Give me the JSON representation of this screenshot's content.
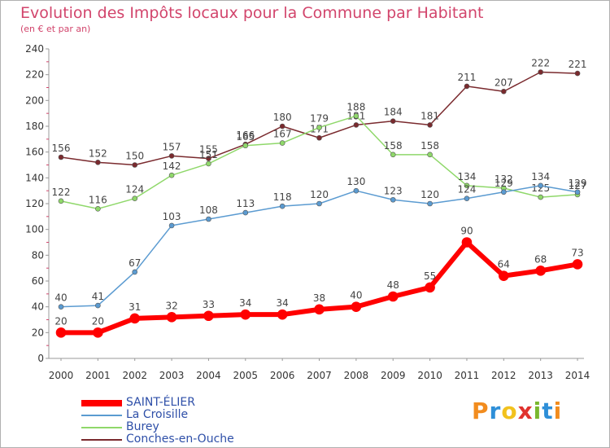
{
  "title": "Evolution des Impôts locaux pour la Commune par Habitant",
  "subtitle": "(en € et par an)",
  "logo": {
    "letters": [
      "P",
      "r",
      "o",
      "x",
      "i",
      "t",
      "i"
    ],
    "colors": [
      "#f28c1e",
      "#2e8fd8",
      "#f2c21e",
      "#e0322e",
      "#7ab82e",
      "#2e8fd8",
      "#f28c1e"
    ]
  },
  "chart_data": {
    "type": "line",
    "x": [
      "2000",
      "2001",
      "2002",
      "2003",
      "2004",
      "2005",
      "2006",
      "2007",
      "2008",
      "2009",
      "2010",
      "2011",
      "2012",
      "2013",
      "2014"
    ],
    "ylim": [
      0,
      240
    ],
    "yticks": [
      0,
      20,
      40,
      60,
      80,
      100,
      120,
      140,
      160,
      180,
      200,
      220,
      240
    ],
    "grid": false,
    "legend": "bottom-left",
    "series": [
      {
        "name": "Conches-en-Ouche",
        "color": "#7a2a2e",
        "width": 1.5,
        "marker": 3,
        "values": [
          156,
          152,
          150,
          157,
          155,
          166,
          180,
          171,
          181,
          184,
          181,
          211,
          207,
          222,
          221
        ]
      },
      {
        "name": "Burey",
        "color": "#8fd86a",
        "width": 1.5,
        "marker": 3,
        "values": [
          122,
          116,
          124,
          142,
          151,
          165,
          167,
          179,
          188,
          158,
          158,
          134,
          132,
          125,
          127
        ]
      },
      {
        "name": "La Croisille",
        "color": "#5b9bd1",
        "width": 1.5,
        "marker": 3,
        "values": [
          40,
          41,
          67,
          103,
          108,
          113,
          118,
          120,
          130,
          123,
          120,
          124,
          129,
          134,
          129
        ]
      },
      {
        "name": "SAINT-ÉLIER",
        "color": "#ff0000",
        "width": 6,
        "marker": 6,
        "values": [
          20,
          20,
          31,
          32,
          33,
          34,
          34,
          38,
          40,
          48,
          55,
          90,
          64,
          68,
          73
        ]
      }
    ]
  }
}
